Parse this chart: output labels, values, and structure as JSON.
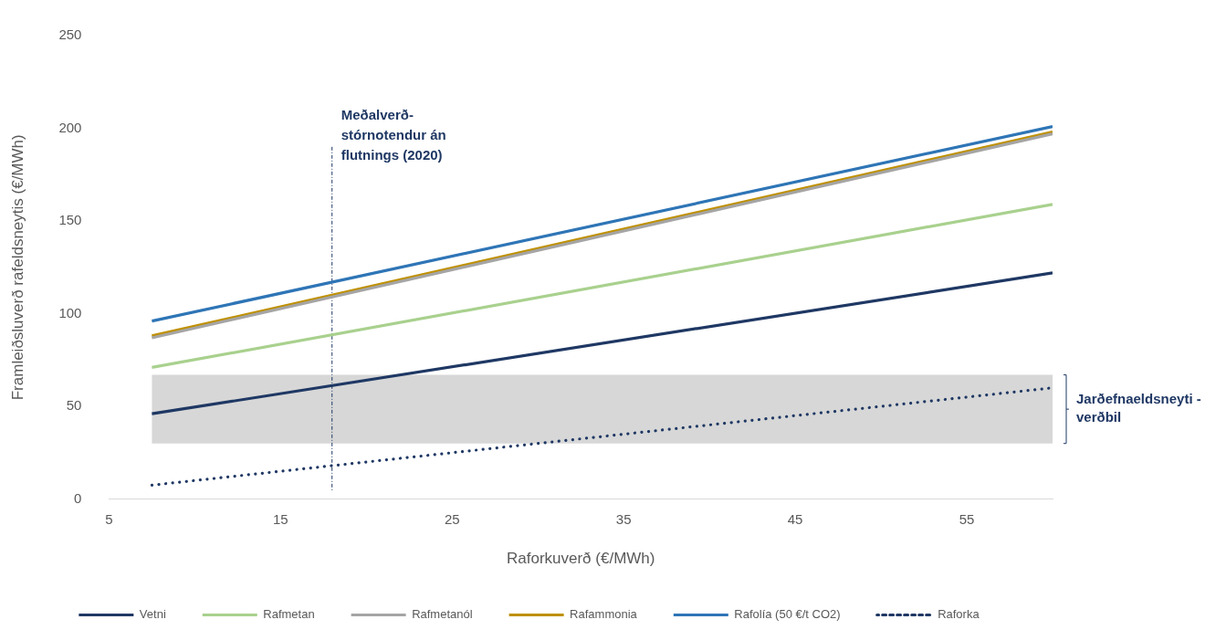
{
  "chart_data": {
    "type": "line",
    "xlabel": "Raforkuverð (€/MWh)",
    "ylabel": "Framleiðsluverð rafeldsneytis (€/MWh)",
    "x": [
      7.5,
      60
    ],
    "xlim": [
      5,
      60
    ],
    "xticks": [
      5,
      15,
      25,
      35,
      45,
      55
    ],
    "ylim": [
      0,
      250
    ],
    "yticks": [
      0,
      50,
      100,
      150,
      200,
      250
    ],
    "grid": false,
    "legend": "bottom",
    "line_style": "solid",
    "marker": "none",
    "series": [
      {
        "name": "Vetni",
        "color": "#1f3864",
        "values": [
          46,
          122
        ]
      },
      {
        "name": "Rafmetan",
        "color": "#a9d18e",
        "values": [
          71,
          159
        ]
      },
      {
        "name": "Rafmetanól",
        "color": "#a5a5a5",
        "values": [
          87,
          197
        ]
      },
      {
        "name": "Rafammonia",
        "color": "#bf9000",
        "values": [
          88,
          198
        ]
      },
      {
        "name": "Rafolía (50 €/t CO2)",
        "color": "#2e75b6",
        "values": [
          96,
          201
        ]
      },
      {
        "name": "Raforka",
        "color": "#1f3864",
        "line_style": "dotted",
        "values": [
          7.5,
          60
        ]
      }
    ],
    "ref_lines": [
      {
        "axis": "x",
        "value": 18,
        "label": "Meðalverð- stórnotendur án flutnings (2020)",
        "color": "#1f3864",
        "line_style": "dashed"
      }
    ],
    "bands": [
      {
        "axis": "y",
        "from": 30,
        "to": 67,
        "label": "Jarðefnaeldsneyti - verðbil",
        "color": "#d0d0d0"
      }
    ]
  }
}
